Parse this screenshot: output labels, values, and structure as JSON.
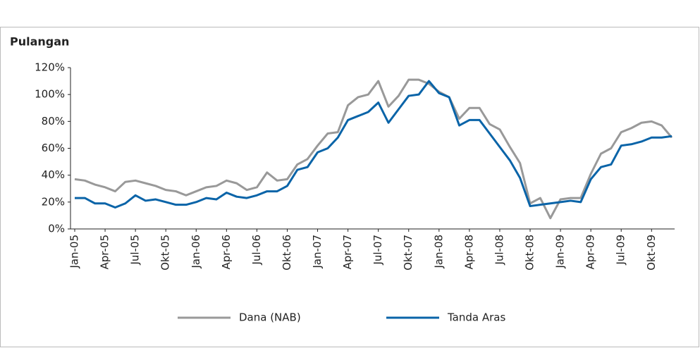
{
  "chart_data": {
    "type": "line",
    "title": "Pulangan",
    "categories": [
      "Jan-05",
      null,
      null,
      "Apr-05",
      null,
      null,
      "Jul-05",
      null,
      null,
      "Okt-05",
      null,
      null,
      "Jan-06",
      null,
      null,
      "Apr-06",
      null,
      null,
      "Jul-06",
      null,
      null,
      "Okt-06",
      null,
      null,
      "Jan-07",
      null,
      null,
      "Apr-07",
      null,
      null,
      "Jul-07",
      null,
      null,
      "Okt-07",
      null,
      null,
      "Jan-08",
      null,
      null,
      "Apr-08",
      null,
      null,
      "Jul-08",
      null,
      null,
      "Okt-08",
      null,
      null,
      "Jan-09",
      null,
      null,
      "Apr-09",
      null,
      null,
      "Jul-09",
      null,
      null,
      "Okt-09",
      null,
      null
    ],
    "series": [
      {
        "name": "Dana (NAB)",
        "color": "#999999",
        "values": [
          37,
          36,
          33,
          31,
          28,
          35,
          36,
          34,
          32,
          29,
          28,
          25,
          28,
          31,
          32,
          36,
          34,
          29,
          31,
          42,
          36,
          37,
          48,
          52,
          62,
          71,
          72,
          92,
          98,
          100,
          110,
          91,
          99,
          111,
          111,
          108,
          102,
          98,
          82,
          90,
          90,
          78,
          74,
          61,
          49,
          19,
          23,
          8,
          22,
          23,
          23,
          41,
          56,
          60,
          72,
          75,
          79,
          80,
          77,
          68
        ]
      },
      {
        "name": "Tanda Aras",
        "color": "#0a64a8",
        "values": [
          23,
          23,
          19,
          19,
          16,
          19,
          25,
          21,
          22,
          20,
          18,
          18,
          20,
          23,
          22,
          27,
          24,
          23,
          25,
          28,
          28,
          32,
          44,
          46,
          57,
          60,
          68,
          81,
          84,
          87,
          94,
          79,
          89,
          99,
          100,
          110,
          101,
          98,
          77,
          81,
          81,
          71,
          61,
          51,
          38,
          17,
          18,
          19,
          20,
          21,
          20,
          37,
          46,
          48,
          62,
          63,
          65,
          68,
          68,
          69
        ]
      }
    ],
    "ylim": [
      0,
      120
    ],
    "yticks": [
      {
        "value": 0,
        "label": "0%"
      },
      {
        "value": 20,
        "label": "20%"
      },
      {
        "value": 40,
        "label": "40%"
      },
      {
        "value": 60,
        "label": "60%"
      },
      {
        "value": 80,
        "label": "80%"
      },
      {
        "value": 100,
        "label": "100%"
      },
      {
        "value": 120,
        "label": "120%"
      }
    ],
    "legend": "bottom"
  }
}
